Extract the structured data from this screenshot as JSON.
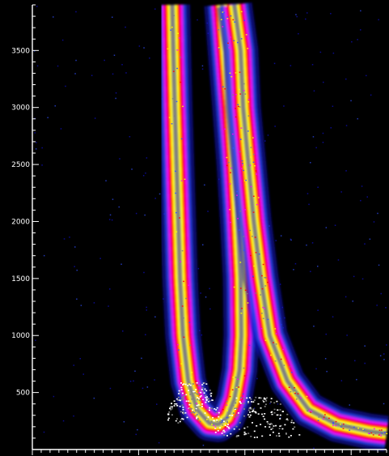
{
  "chart_data": {
    "type": "heatmap",
    "title": "",
    "xlabel": "",
    "ylabel": "",
    "y_tick_labels": [
      "500",
      "1000",
      "1500",
      "2000",
      "2500",
      "3000",
      "3500"
    ],
    "x_tick_labels": [],
    "ylim": [
      0,
      3900
    ],
    "xlim": [
      0,
      100
    ],
    "grid": false,
    "colormap": [
      "#000000",
      "#1010c8",
      "#3050ff",
      "#ff00ff",
      "#ff0000",
      "#ffff00",
      "#808080",
      "#ffffff"
    ],
    "bands": [
      {
        "ridge": [
          [
            39.5,
            3900
          ],
          [
            39.8,
            3500
          ],
          [
            40.2,
            3000
          ],
          [
            40.7,
            2500
          ],
          [
            41.2,
            2000
          ],
          [
            41.7,
            1500
          ],
          [
            42.5,
            1000
          ],
          [
            44.0,
            600
          ],
          [
            46.5,
            350
          ],
          [
            50.0,
            230
          ],
          [
            52.5,
            220
          ],
          [
            55.0,
            280
          ],
          [
            57.0,
            440
          ],
          [
            58.5,
            700
          ],
          [
            59.0,
            1000
          ],
          [
            58.8,
            1500
          ],
          [
            58.0,
            2000
          ],
          [
            57.0,
            2500
          ],
          [
            55.8,
            3000
          ],
          [
            54.5,
            3500
          ],
          [
            53.5,
            3900
          ]
        ]
      },
      {
        "ridge": [
          [
            57.0,
            3900
          ],
          [
            58.8,
            3500
          ],
          [
            59.5,
            3000
          ],
          [
            61.0,
            2500
          ],
          [
            62.5,
            2000
          ],
          [
            64.5,
            1500
          ],
          [
            67.0,
            1000
          ],
          [
            72.0,
            600
          ],
          [
            78.0,
            350
          ],
          [
            86.0,
            220
          ],
          [
            95.0,
            160
          ],
          [
            100.0,
            140
          ]
        ]
      }
    ]
  }
}
